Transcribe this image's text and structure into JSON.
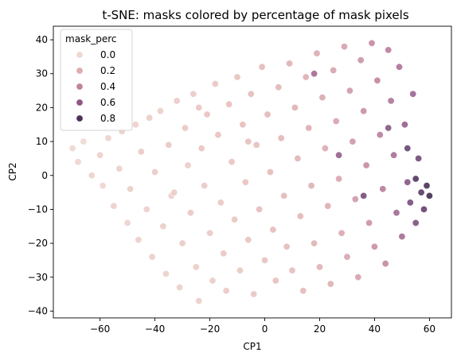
{
  "chart_data": {
    "type": "scatter",
    "title": "t-SNE: masks colored by percentage of mask pixels",
    "xlabel": "CP1",
    "ylabel": "CP2",
    "xlim": [
      -77,
      68
    ],
    "ylim": [
      -42,
      44
    ],
    "x_ticks": [
      -60,
      -40,
      -20,
      0,
      20,
      40,
      60
    ],
    "y_ticks": [
      -40,
      -30,
      -20,
      -10,
      0,
      10,
      20,
      30,
      40
    ],
    "x_tick_labels": [
      "−60",
      "−40",
      "−20",
      "0",
      "20",
      "40",
      "60"
    ],
    "y_tick_labels": [
      "−40",
      "−30",
      "−20",
      "−10",
      "0",
      "10",
      "20",
      "30",
      "40"
    ],
    "grid": false,
    "legend": {
      "title": "mask_perc",
      "placement": "upper-left",
      "entries": [
        {
          "label": "0.0",
          "value": 0.0
        },
        {
          "label": "0.2",
          "value": 0.2
        },
        {
          "label": "0.4",
          "value": 0.4
        },
        {
          "label": "0.6",
          "value": 0.6
        },
        {
          "label": "0.8",
          "value": 0.8
        }
      ]
    },
    "hue_variable": "mask_perc",
    "hue_range": [
      0,
      0.9
    ],
    "colormap": [
      "#efd8d2",
      "#e3b7b5",
      "#d29aa7",
      "#b87797",
      "#8e5686",
      "#5e3869",
      "#2d1e3e"
    ],
    "points": [
      [
        -70,
        8,
        0.02
      ],
      [
        -68,
        4,
        0.03
      ],
      [
        -66,
        10,
        0.01
      ],
      [
        -63,
        0,
        0.04
      ],
      [
        -60,
        6,
        0.05
      ],
      [
        -59,
        -3,
        0.03
      ],
      [
        -57,
        11,
        0.04
      ],
      [
        -55,
        -9,
        0.06
      ],
      [
        -53,
        2,
        0.05
      ],
      [
        -52,
        13,
        0.06
      ],
      [
        -50,
        -14,
        0.04
      ],
      [
        -49,
        -4,
        0.07
      ],
      [
        -47,
        15,
        0.05
      ],
      [
        -46,
        -19,
        0.06
      ],
      [
        -45,
        7,
        0.08
      ],
      [
        -43,
        -10,
        0.05
      ],
      [
        -42,
        17,
        0.07
      ],
      [
        -41,
        -24,
        0.06
      ],
      [
        -40,
        1,
        0.08
      ],
      [
        -38,
        19,
        0.06
      ],
      [
        -37,
        -15,
        0.07
      ],
      [
        -36,
        -29,
        0.05
      ],
      [
        -35,
        9,
        0.09
      ],
      [
        -33,
        -5,
        0.07
      ],
      [
        -32,
        22,
        0.08
      ],
      [
        -31,
        -33,
        0.06
      ],
      [
        -30,
        -20,
        0.08
      ],
      [
        -29,
        14,
        0.1
      ],
      [
        -28,
        3,
        0.07
      ],
      [
        -27,
        -11,
        0.09
      ],
      [
        -26,
        24,
        0.08
      ],
      [
        -25,
        -27,
        0.07
      ],
      [
        -24,
        -37,
        0.06
      ],
      [
        -23,
        8,
        0.1
      ],
      [
        -22,
        -3,
        0.09
      ],
      [
        -21,
        18,
        0.11
      ],
      [
        -20,
        -17,
        0.08
      ],
      [
        -19,
        -31,
        0.07
      ],
      [
        -18,
        27,
        0.1
      ],
      [
        -17,
        12,
        0.12
      ],
      [
        -16,
        -8,
        0.09
      ],
      [
        -15,
        -23,
        0.1
      ],
      [
        -14,
        -34,
        0.08
      ],
      [
        -13,
        21,
        0.13
      ],
      [
        -12,
        4,
        0.11
      ],
      [
        -11,
        -13,
        0.1
      ],
      [
        -10,
        29,
        0.12
      ],
      [
        -9,
        -28,
        0.09
      ],
      [
        -8,
        15,
        0.14
      ],
      [
        -7,
        -2,
        0.12
      ],
      [
        -6,
        -19,
        0.11
      ],
      [
        -5,
        24,
        0.15
      ],
      [
        -4,
        -35,
        0.1
      ],
      [
        -3,
        9,
        0.13
      ],
      [
        -2,
        -10,
        0.14
      ],
      [
        -1,
        32,
        0.16
      ],
      [
        0,
        -25,
        0.12
      ],
      [
        1,
        18,
        0.17
      ],
      [
        2,
        1,
        0.15
      ],
      [
        3,
        -16,
        0.14
      ],
      [
        4,
        -31,
        0.13
      ],
      [
        5,
        26,
        0.18
      ],
      [
        6,
        11,
        0.17
      ],
      [
        7,
        -6,
        0.16
      ],
      [
        8,
        -21,
        0.15
      ],
      [
        9,
        33,
        0.2
      ],
      [
        10,
        -28,
        0.14
      ],
      [
        11,
        20,
        0.21
      ],
      [
        12,
        5,
        0.19
      ],
      [
        13,
        -12,
        0.18
      ],
      [
        14,
        -34,
        0.16
      ],
      [
        15,
        29,
        0.22
      ],
      [
        16,
        14,
        0.23
      ],
      [
        17,
        -3,
        0.21
      ],
      [
        18,
        -20,
        0.19
      ],
      [
        19,
        36,
        0.24
      ],
      [
        20,
        -27,
        0.2
      ],
      [
        21,
        23,
        0.26
      ],
      [
        22,
        8,
        0.25
      ],
      [
        23,
        -9,
        0.23
      ],
      [
        24,
        -32,
        0.21
      ],
      [
        25,
        31,
        0.28
      ],
      [
        26,
        16,
        0.29
      ],
      [
        27,
        -1,
        0.27
      ],
      [
        28,
        -17,
        0.26
      ],
      [
        29,
        38,
        0.3
      ],
      [
        30,
        -24,
        0.27
      ],
      [
        31,
        25,
        0.33
      ],
      [
        32,
        10,
        0.34
      ],
      [
        33,
        -7,
        0.33
      ],
      [
        34,
        -30,
        0.29
      ],
      [
        35,
        34,
        0.36
      ],
      [
        36,
        19,
        0.38
      ],
      [
        37,
        3,
        0.39
      ],
      [
        38,
        -14,
        0.36
      ],
      [
        39,
        39,
        0.4
      ],
      [
        40,
        -21,
        0.37
      ],
      [
        41,
        28,
        0.42
      ],
      [
        42,
        12,
        0.45
      ],
      [
        43,
        -4,
        0.47
      ],
      [
        44,
        -26,
        0.41
      ],
      [
        45,
        37,
        0.46
      ],
      [
        46,
        22,
        0.5
      ],
      [
        47,
        6,
        0.53
      ],
      [
        48,
        -11,
        0.55
      ],
      [
        49,
        32,
        0.51
      ],
      [
        50,
        -18,
        0.54
      ],
      [
        51,
        15,
        0.6
      ],
      [
        52,
        -2,
        0.65
      ],
      [
        53,
        -8,
        0.7
      ],
      [
        54,
        24,
        0.58
      ],
      [
        55,
        -14,
        0.68
      ],
      [
        56,
        5,
        0.72
      ],
      [
        57,
        -5,
        0.8
      ],
      [
        58,
        -10,
        0.76
      ],
      [
        59,
        -3,
        0.85
      ],
      [
        60,
        -6,
        0.88
      ],
      [
        -34,
        -6,
        0.05
      ],
      [
        -24,
        20,
        0.1
      ],
      [
        -6,
        10,
        0.13
      ],
      [
        18,
        30,
        0.55
      ],
      [
        27,
        6,
        0.6
      ],
      [
        36,
        -6,
        0.7
      ],
      [
        45,
        14,
        0.65
      ],
      [
        52,
        8,
        0.75
      ],
      [
        55,
        -1,
        0.82
      ]
    ]
  }
}
